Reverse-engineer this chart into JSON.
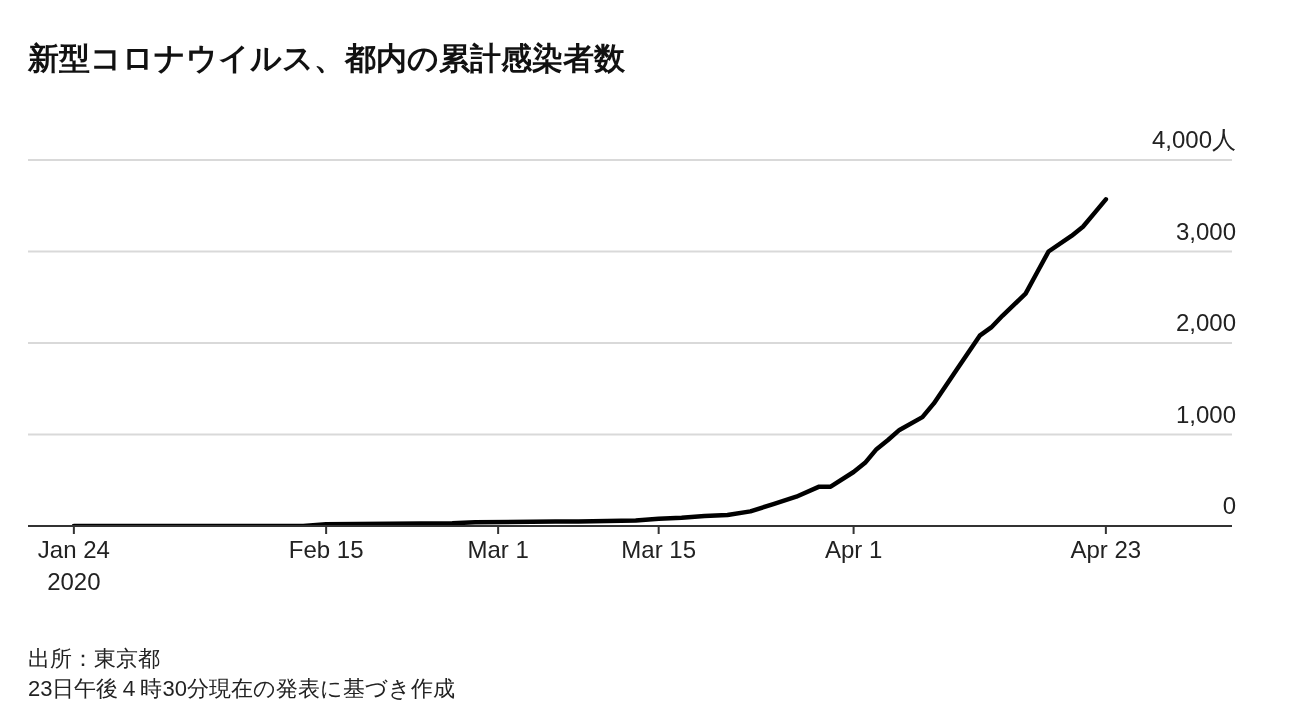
{
  "chart_data": {
    "type": "line",
    "title": "新型コロナウイルス、都内の累計感染者数",
    "annotations": [
      "出所：東京都",
      "23日午後４時30分現在の発表に基づき作成"
    ],
    "x": [
      "2020-01-24",
      "2020-02-13",
      "2020-02-15",
      "2020-02-26",
      "2020-02-28",
      "2020-03-06",
      "2020-03-08",
      "2020-03-13",
      "2020-03-15",
      "2020-03-17",
      "2020-03-19",
      "2020-03-21",
      "2020-03-23",
      "2020-03-25",
      "2020-03-27",
      "2020-03-29",
      "2020-03-30",
      "2020-04-01",
      "2020-04-02",
      "2020-04-03",
      "2020-04-04",
      "2020-04-05",
      "2020-04-07",
      "2020-04-08",
      "2020-04-10",
      "2020-04-12",
      "2020-04-13",
      "2020-04-14",
      "2020-04-16",
      "2020-04-17",
      "2020-04-18",
      "2020-04-20",
      "2020-04-21",
      "2020-04-22",
      "2020-04-23"
    ],
    "series": [
      {
        "color": "#000000",
        "values": [
          0,
          0,
          20,
          30,
          40,
          50,
          50,
          60,
          80,
          90,
          110,
          120,
          160,
          240,
          320,
          430,
          430,
          590,
          690,
          840,
          940,
          1050,
          1190,
          1340,
          1710,
          2080,
          2170,
          2300,
          2540,
          2770,
          3000,
          3170,
          3270,
          3420,
          3570
        ]
      }
    ],
    "xlim": [
      "2020-01-20",
      "2020-05-04"
    ],
    "xticks": [
      {
        "value": "2020-01-24",
        "label": "Jan 24\n2020"
      },
      {
        "value": "2020-02-15",
        "label": "Feb 15"
      },
      {
        "value": "2020-03-01",
        "label": "Mar 1"
      },
      {
        "value": "2020-03-15",
        "label": "Mar 15"
      },
      {
        "value": "2020-04-01",
        "label": "Apr 1"
      },
      {
        "value": "2020-04-23",
        "label": "Apr 23"
      }
    ],
    "ylim": [
      0,
      4000
    ],
    "yticks": [
      0,
      {
        "value": 1000,
        "label": "1,000"
      },
      {
        "value": 2000,
        "label": "2,000"
      },
      {
        "value": 3000,
        "label": "3,000"
      },
      {
        "value": 4000,
        "label": "4,000人"
      }
    ],
    "grid": "y",
    "line_style": "solid"
  }
}
